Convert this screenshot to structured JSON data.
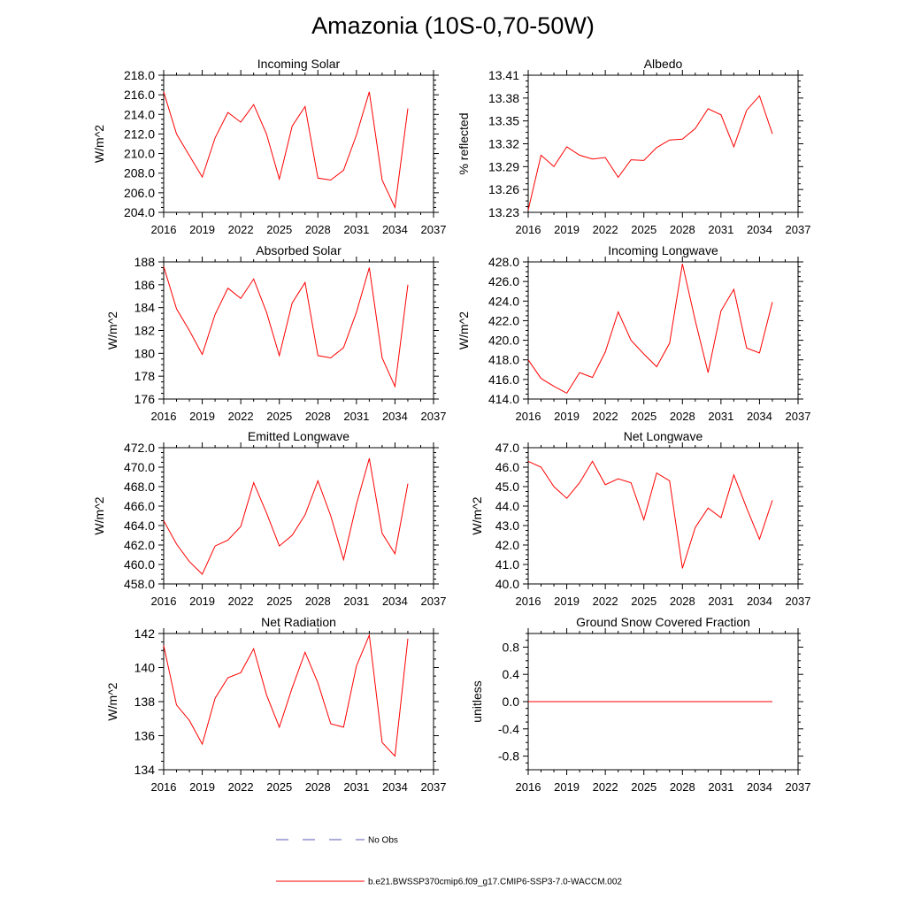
{
  "title": "Amazonia (10S-0,70-50W)",
  "legend": {
    "obs_label": "No Obs",
    "model_label": "b.e21.BWSSP370cmip6.f09_g17.CMIP6-SSP3-7.0-WACCM.002",
    "obs_color": "#5a5ab4",
    "model_color": "#ff0000"
  },
  "chart_data": [
    {
      "type": "line",
      "title": "Incoming Solar",
      "ylabel": "W/m^2",
      "xlim": [
        2016,
        2037
      ],
      "xticks": [
        2016,
        2019,
        2022,
        2025,
        2028,
        2031,
        2034,
        2037
      ],
      "xtick_labels": [
        "2016",
        "2019",
        "2022",
        "2025",
        "2028",
        "2031",
        "2034",
        "2037"
      ],
      "ylim": [
        204.0,
        218.0
      ],
      "yticks": [
        204,
        206,
        208,
        210,
        212,
        214,
        216,
        218
      ],
      "ytick_labels": [
        "204.0",
        "206.0",
        "208.0",
        "210.0",
        "212.0",
        "214.0",
        "216.0",
        "218.0"
      ],
      "x": [
        2016,
        2017,
        2018,
        2019,
        2020,
        2021,
        2022,
        2023,
        2024,
        2025,
        2026,
        2027,
        2028,
        2029,
        2030,
        2031,
        2032,
        2033,
        2034,
        2035
      ],
      "values": [
        216.3,
        212.0,
        209.8,
        207.6,
        211.6,
        214.2,
        213.2,
        215.0,
        212.0,
        207.4,
        212.8,
        214.8,
        207.5,
        207.3,
        208.3,
        211.9,
        216.3,
        207.3,
        204.5,
        214.6
      ]
    },
    {
      "type": "line",
      "title": "Albedo",
      "ylabel": "% reflected",
      "xlim": [
        2016,
        2037
      ],
      "xticks": [
        2016,
        2019,
        2022,
        2025,
        2028,
        2031,
        2034,
        2037
      ],
      "xtick_labels": [
        "2016",
        "2019",
        "2022",
        "2025",
        "2028",
        "2031",
        "2034",
        "2037"
      ],
      "ylim": [
        13.23,
        13.41
      ],
      "yticks": [
        13.23,
        13.26,
        13.29,
        13.32,
        13.35,
        13.38,
        13.41
      ],
      "ytick_labels": [
        "13.23",
        "13.26",
        "13.29",
        "13.32",
        "13.35",
        "13.38",
        "13.41"
      ],
      "x": [
        2016,
        2017,
        2018,
        2019,
        2020,
        2021,
        2022,
        2023,
        2024,
        2025,
        2026,
        2027,
        2028,
        2029,
        2030,
        2031,
        2032,
        2033,
        2034,
        2035
      ],
      "values": [
        13.233,
        13.305,
        13.29,
        13.316,
        13.305,
        13.3,
        13.302,
        13.276,
        13.299,
        13.298,
        13.315,
        13.325,
        13.326,
        13.34,
        13.366,
        13.358,
        13.316,
        13.364,
        13.383,
        13.333
      ]
    },
    {
      "type": "line",
      "title": "Absorbed Solar",
      "ylabel": "W/m^2",
      "xlim": [
        2016,
        2037
      ],
      "xticks": [
        2016,
        2019,
        2022,
        2025,
        2028,
        2031,
        2034,
        2037
      ],
      "xtick_labels": [
        "2016",
        "2019",
        "2022",
        "2025",
        "2028",
        "2031",
        "2034",
        "2037"
      ],
      "ylim": [
        176,
        188
      ],
      "yticks": [
        176,
        178,
        180,
        182,
        184,
        186,
        188
      ],
      "ytick_labels": [
        "176",
        "178",
        "180",
        "182",
        "184",
        "186",
        "188"
      ],
      "x": [
        2016,
        2017,
        2018,
        2019,
        2020,
        2021,
        2022,
        2023,
        2024,
        2025,
        2026,
        2027,
        2028,
        2029,
        2030,
        2031,
        2032,
        2033,
        2034,
        2035
      ],
      "values": [
        187.6,
        183.9,
        182.0,
        179.9,
        183.4,
        185.7,
        184.8,
        186.5,
        183.6,
        179.8,
        184.4,
        186.2,
        179.8,
        179.6,
        180.5,
        183.6,
        187.5,
        179.6,
        177.1,
        186.0
      ]
    },
    {
      "type": "line",
      "title": "Incoming Longwave",
      "ylabel": "W/m^2",
      "xlim": [
        2016,
        2037
      ],
      "xticks": [
        2016,
        2019,
        2022,
        2025,
        2028,
        2031,
        2034,
        2037
      ],
      "xtick_labels": [
        "2016",
        "2019",
        "2022",
        "2025",
        "2028",
        "2031",
        "2034",
        "2037"
      ],
      "ylim": [
        414.0,
        428.0
      ],
      "yticks": [
        414,
        416,
        418,
        420,
        422,
        424,
        426,
        428
      ],
      "ytick_labels": [
        "414.0",
        "416.0",
        "418.0",
        "420.0",
        "422.0",
        "424.0",
        "426.0",
        "428.0"
      ],
      "x": [
        2016,
        2017,
        2018,
        2019,
        2020,
        2021,
        2022,
        2023,
        2024,
        2025,
        2026,
        2027,
        2028,
        2029,
        2030,
        2031,
        2032,
        2033,
        2034,
        2035
      ],
      "values": [
        418.0,
        416.1,
        415.3,
        414.6,
        416.7,
        416.2,
        418.8,
        422.9,
        420.0,
        418.6,
        417.3,
        419.7,
        427.8,
        422.0,
        416.7,
        423.0,
        425.2,
        419.2,
        418.7,
        423.9
      ]
    },
    {
      "type": "line",
      "title": "Emitted Longwave",
      "ylabel": "W/m^2",
      "xlim": [
        2016,
        2037
      ],
      "xticks": [
        2016,
        2019,
        2022,
        2025,
        2028,
        2031,
        2034,
        2037
      ],
      "xtick_labels": [
        "2016",
        "2019",
        "2022",
        "2025",
        "2028",
        "2031",
        "2034",
        "2037"
      ],
      "ylim": [
        458.0,
        472.0
      ],
      "yticks": [
        458,
        460,
        462,
        464,
        466,
        468,
        470,
        472
      ],
      "ytick_labels": [
        "458.0",
        "460.0",
        "462.0",
        "464.0",
        "466.0",
        "468.0",
        "470.0",
        "472.0"
      ],
      "x": [
        2016,
        2017,
        2018,
        2019,
        2020,
        2021,
        2022,
        2023,
        2024,
        2025,
        2026,
        2027,
        2028,
        2029,
        2030,
        2031,
        2032,
        2033,
        2034,
        2035
      ],
      "values": [
        464.5,
        462.1,
        460.3,
        459.0,
        461.9,
        462.5,
        463.9,
        468.4,
        465.3,
        461.9,
        463.0,
        465.1,
        468.6,
        465.0,
        460.5,
        466.2,
        470.9,
        463.2,
        461.1,
        468.3
      ]
    },
    {
      "type": "line",
      "title": "Net Longwave",
      "ylabel": "W/m^2",
      "xlim": [
        2016,
        2037
      ],
      "xticks": [
        2016,
        2019,
        2022,
        2025,
        2028,
        2031,
        2034,
        2037
      ],
      "xtick_labels": [
        "2016",
        "2019",
        "2022",
        "2025",
        "2028",
        "2031",
        "2034",
        "2037"
      ],
      "ylim": [
        40.0,
        47.0
      ],
      "yticks": [
        40,
        41,
        42,
        43,
        44,
        45,
        46,
        47
      ],
      "ytick_labels": [
        "40.0",
        "41.0",
        "42.0",
        "43.0",
        "44.0",
        "45.0",
        "46.0",
        "47.0"
      ],
      "x": [
        2016,
        2017,
        2018,
        2019,
        2020,
        2021,
        2022,
        2023,
        2024,
        2025,
        2026,
        2027,
        2028,
        2029,
        2030,
        2031,
        2032,
        2033,
        2034,
        2035
      ],
      "values": [
        46.3,
        46.0,
        45.0,
        44.4,
        45.2,
        46.3,
        45.1,
        45.4,
        45.2,
        43.3,
        45.7,
        45.3,
        40.8,
        42.9,
        43.9,
        43.4,
        45.6,
        43.9,
        42.3,
        44.3
      ]
    },
    {
      "type": "line",
      "title": "Net Radiation",
      "ylabel": "W/m^2",
      "xlim": [
        2016,
        2037
      ],
      "xticks": [
        2016,
        2019,
        2022,
        2025,
        2028,
        2031,
        2034,
        2037
      ],
      "xtick_labels": [
        "2016",
        "2019",
        "2022",
        "2025",
        "2028",
        "2031",
        "2034",
        "2037"
      ],
      "ylim": [
        134,
        142
      ],
      "yticks": [
        134,
        136,
        138,
        140,
        142
      ],
      "ytick_labels": [
        "134",
        "136",
        "138",
        "140",
        "142"
      ],
      "x": [
        2016,
        2017,
        2018,
        2019,
        2020,
        2021,
        2022,
        2023,
        2024,
        2025,
        2026,
        2027,
        2028,
        2029,
        2030,
        2031,
        2032,
        2033,
        2034,
        2035
      ],
      "values": [
        141.3,
        137.8,
        136.9,
        135.5,
        138.2,
        139.4,
        139.7,
        141.1,
        138.4,
        136.5,
        138.8,
        140.9,
        139.1,
        136.7,
        136.5,
        140.1,
        141.9,
        135.6,
        134.8,
        141.7
      ]
    },
    {
      "type": "line",
      "title": "Ground Snow Covered Fraction",
      "ylabel": "unitless",
      "xlim": [
        2016,
        2037
      ],
      "xticks": [
        2016,
        2019,
        2022,
        2025,
        2028,
        2031,
        2034,
        2037
      ],
      "xtick_labels": [
        "2016",
        "2019",
        "2022",
        "2025",
        "2028",
        "2031",
        "2034",
        "2037"
      ],
      "ylim": [
        -1.0,
        1.0
      ],
      "yticks": [
        -0.8,
        -0.4,
        0.0,
        0.4,
        0.8
      ],
      "ytick_labels": [
        "-0.8",
        "-0.4",
        "0.0",
        "0.4",
        "0.8"
      ],
      "x": [
        2016,
        2017,
        2018,
        2019,
        2020,
        2021,
        2022,
        2023,
        2024,
        2025,
        2026,
        2027,
        2028,
        2029,
        2030,
        2031,
        2032,
        2033,
        2034,
        2035
      ],
      "values": [
        0,
        0,
        0,
        0,
        0,
        0,
        0,
        0,
        0,
        0,
        0,
        0,
        0,
        0,
        0,
        0,
        0,
        0,
        0,
        0
      ]
    }
  ]
}
